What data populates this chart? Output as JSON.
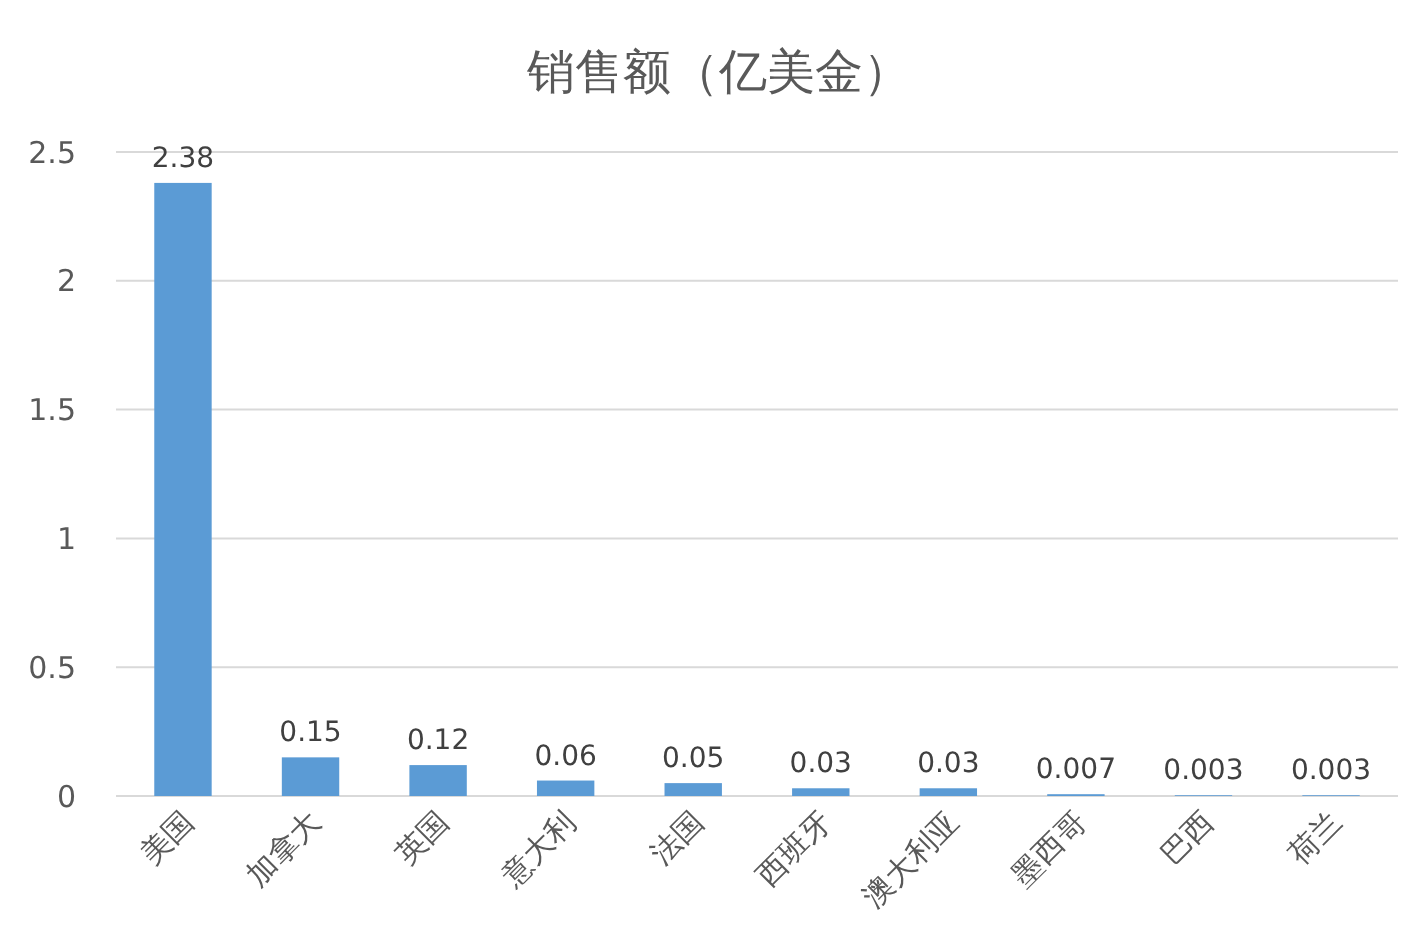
{
  "chart_data": {
    "type": "bar",
    "title": "销售额（亿美金）",
    "categories": [
      "美国",
      "加拿大",
      "英国",
      "意大利",
      "法国",
      "西班牙",
      "澳大利亚",
      "墨西哥",
      "巴西",
      "荷兰"
    ],
    "values": [
      2.38,
      0.15,
      0.12,
      0.06,
      0.05,
      0.03,
      0.03,
      0.007,
      0.003,
      0.003
    ],
    "color": "#5b9bd5",
    "ylim": [
      0,
      2.5
    ],
    "yticks": [
      0,
      {
        "value": 0.5,
        "label": "0.5"
      },
      1,
      1.5,
      2,
      2.5
    ],
    "grid": "y",
    "data_labels": true
  }
}
